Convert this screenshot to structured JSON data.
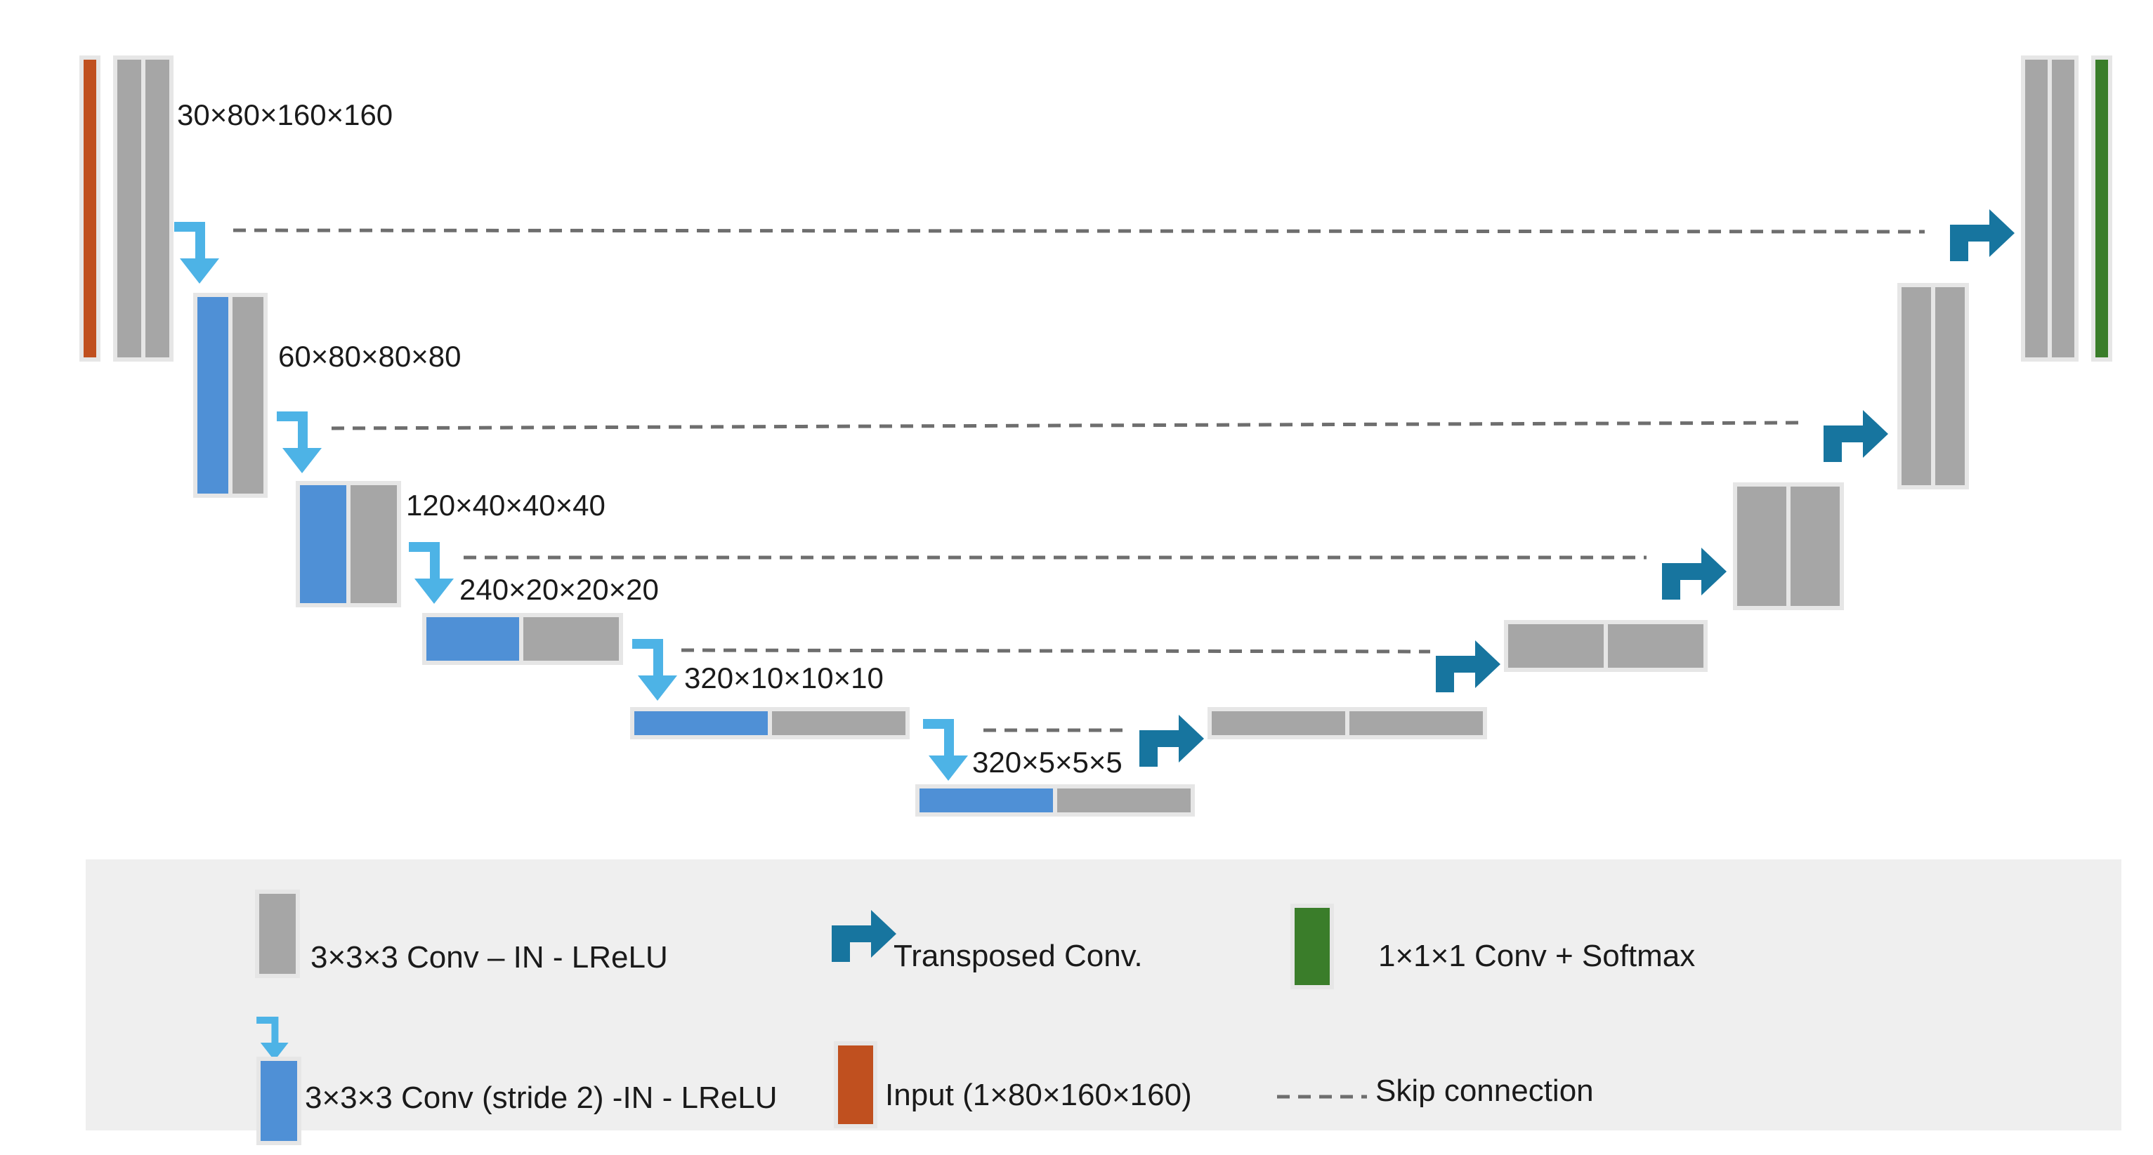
{
  "colors": {
    "conv": "#a6a6a6",
    "conv_stride": "#4f90d6",
    "input": "#c0501f",
    "output": "#3a7d2a",
    "down_arrow": "#4db3e6",
    "up_arrow": "#17759f",
    "skip_line": "#6e6e6e",
    "legend_bg": "#efefef",
    "block_border": "#e6e6e6"
  },
  "encoder_labels": [
    "30×80×160×160",
    "60×80×80×80",
    "120×40×40×40",
    "240×20×20×20",
    "320×10×10×10",
    "320×5×5×5"
  ],
  "legend": {
    "conv": "3×3×3 Conv – IN - LReLU",
    "transposed": "Transposed Conv.",
    "softmax": "1×1×1 Conv + Softmax",
    "stride_conv": "3×3×3 Conv (stride 2) -IN - LReLU",
    "input": "Input (1×80×160×160)",
    "skip": "Skip connection"
  }
}
